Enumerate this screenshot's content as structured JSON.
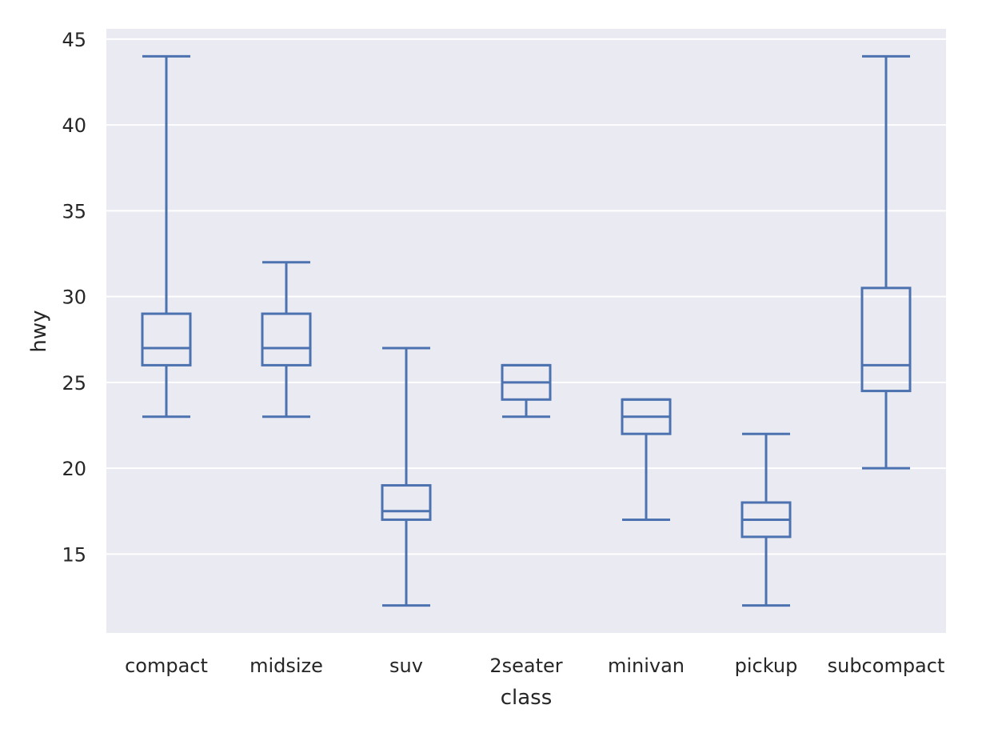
{
  "chart_data": {
    "type": "boxplot",
    "xlabel": "class",
    "ylabel": "hwy",
    "ylim": [
      10.4,
      45.6
    ],
    "yticks": [
      15,
      20,
      25,
      30,
      35,
      40,
      45
    ],
    "grid": true,
    "colors": {
      "box": "#4c72b0",
      "background": "#eaeaf2",
      "grid": "#ffffff",
      "text": "#262626"
    },
    "categories": [
      "compact",
      "midsize",
      "suv",
      "2seater",
      "minivan",
      "pickup",
      "subcompact"
    ],
    "boxes": [
      {
        "category": "compact",
        "whisker_low": 23,
        "q1": 26,
        "median": 27,
        "q3": 29,
        "whisker_high": 44
      },
      {
        "category": "midsize",
        "whisker_low": 23,
        "q1": 26,
        "median": 27,
        "q3": 29,
        "whisker_high": 32
      },
      {
        "category": "suv",
        "whisker_low": 12,
        "q1": 17,
        "median": 17.5,
        "q3": 19,
        "whisker_high": 27
      },
      {
        "category": "2seater",
        "whisker_low": 23,
        "q1": 24,
        "median": 25,
        "q3": 26,
        "whisker_high": 26
      },
      {
        "category": "minivan",
        "whisker_low": 17,
        "q1": 22,
        "median": 23,
        "q3": 24,
        "whisker_high": 24
      },
      {
        "category": "pickup",
        "whisker_low": 12,
        "q1": 16,
        "median": 17,
        "q3": 18,
        "whisker_high": 22
      },
      {
        "category": "subcompact",
        "whisker_low": 20,
        "q1": 24.5,
        "median": 26,
        "q3": 30.5,
        "whisker_high": 44
      }
    ]
  }
}
